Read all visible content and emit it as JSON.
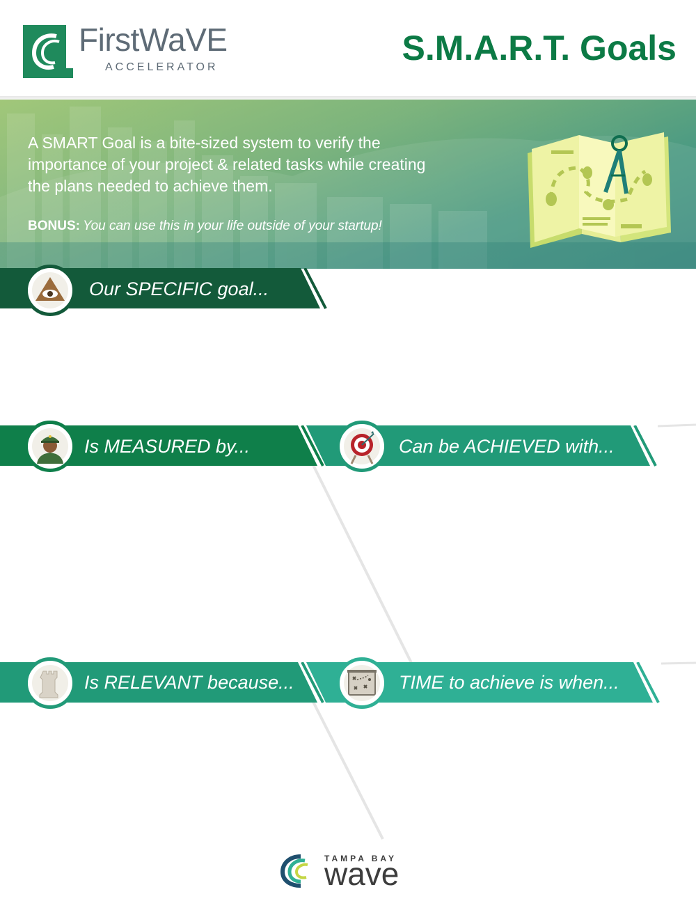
{
  "header": {
    "logo_title": "FirstWaVE",
    "logo_subtitle": "ACCELERATOR",
    "title": "S.M.A.R.T. Goals"
  },
  "intro": {
    "text": "A SMART Goal is a bite-sized system to verify the importance of your project & related tasks while creating the plans needed to achieve them.",
    "bonus_label": "BONUS:",
    "bonus_text": "You can use this in your life outside of your startup!"
  },
  "sections": {
    "specific": {
      "label": "Our SPECIFIC goal...",
      "icon": "eye-pyramid-icon"
    },
    "measured": {
      "label": "Is MEASURED by...",
      "icon": "soldier-icon"
    },
    "achieved": {
      "label": "Can be ACHIEVED with...",
      "icon": "target-icon"
    },
    "relevant": {
      "label": "Is RELEVANT because...",
      "icon": "chess-rook-icon"
    },
    "time": {
      "label": "TIME to achieve is when...",
      "icon": "strategy-board-icon"
    }
  },
  "footer": {
    "top": "TAMPA BAY",
    "main": "wave"
  },
  "colors": {
    "brand_green": "#0c7a45",
    "dark_green": "#135a3a",
    "mid_green": "#0f7f4a",
    "teal": "#219a78",
    "light_teal": "#2fb095"
  }
}
